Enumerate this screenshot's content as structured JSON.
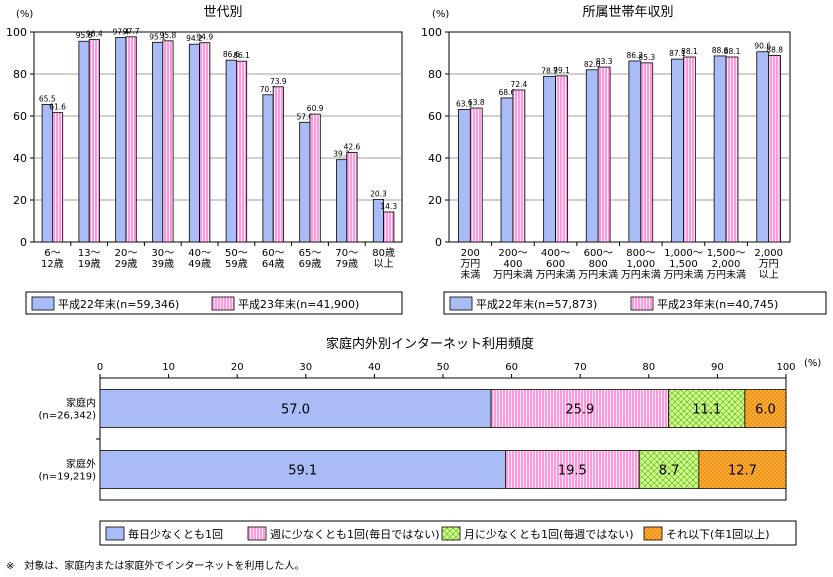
{
  "colors": {
    "blue": "#A9BCF5",
    "pink": "#FF99DD",
    "green": "#CCFF88",
    "orange": "#FFAA33",
    "frame": "#000000"
  },
  "chart_data": [
    {
      "type": "bar",
      "title": "世代別",
      "unit_label": "(%)",
      "ylim": [
        0,
        100
      ],
      "yticks": [
        "0",
        "20",
        "40",
        "60",
        "80",
        "100"
      ],
      "categories": [
        [
          "6～",
          "12歳"
        ],
        [
          "13～",
          "19歳"
        ],
        [
          "20～",
          "29歳"
        ],
        [
          "30～",
          "39歳"
        ],
        [
          "40～",
          "49歳"
        ],
        [
          "50～",
          "59歳"
        ],
        [
          "60～",
          "64歳"
        ],
        [
          "65～",
          "69歳"
        ],
        [
          "70～",
          "79歳"
        ],
        [
          "80歳",
          "以上"
        ]
      ],
      "series": [
        {
          "name": "平成22年末(n=59,346)",
          "values": [
            65.5,
            95.6,
            97.4,
            95.1,
            94.2,
            86.6,
            70.1,
            57.0,
            39.2,
            20.3
          ]
        },
        {
          "name": "平成23年末(n=41,900)",
          "values": [
            61.6,
            96.4,
            97.7,
            95.8,
            94.9,
            86.1,
            73.9,
            60.9,
            42.6,
            14.3
          ]
        }
      ]
    },
    {
      "type": "bar",
      "title": "所属世帯年収別",
      "unit_label": "(%)",
      "ylim": [
        0,
        100
      ],
      "yticks": [
        "0",
        "20",
        "40",
        "60",
        "80",
        "100"
      ],
      "categories": [
        [
          "200",
          "万円",
          "未満"
        ],
        [
          "200～",
          "400",
          "万円未満"
        ],
        [
          "400～",
          "600",
          "万円未満"
        ],
        [
          "600～",
          "800",
          "万円未満"
        ],
        [
          "800～",
          "1,000",
          "万円未満"
        ],
        [
          "1,000～",
          "1,500",
          "万円未満"
        ],
        [
          "1,500～",
          "2,000",
          "万円未満"
        ],
        [
          "2,000",
          "万円",
          "以上"
        ]
      ],
      "series": [
        {
          "name": "平成22年末(n=57,873)",
          "values": [
            63.1,
            68.6,
            78.9,
            82.0,
            86.2,
            87.1,
            88.6,
            90.6
          ]
        },
        {
          "name": "平成23年末(n=40,745)",
          "values": [
            63.8,
            72.4,
            79.1,
            83.3,
            85.3,
            88.1,
            88.1,
            88.8
          ]
        }
      ]
    },
    {
      "type": "bar",
      "orientation": "horizontal-stacked",
      "title": "家庭内外別インターネット利用頻度",
      "unit_label": "(%)",
      "xlim": [
        0,
        100
      ],
      "xticks": [
        "0",
        "10",
        "20",
        "30",
        "40",
        "50",
        "60",
        "70",
        "80",
        "90",
        "100"
      ],
      "categories": [
        [
          "家庭内",
          "(n=26,342)"
        ],
        [
          "家庭外",
          "(n=19,219)"
        ]
      ],
      "series": [
        {
          "name": "毎日少なくとも1回",
          "values": [
            57.0,
            59.1
          ]
        },
        {
          "name": "週に少なくとも1回(毎日ではない)",
          "values": [
            25.9,
            19.5
          ]
        },
        {
          "name": "月に少なくとも1回(毎週ではない)",
          "values": [
            11.1,
            8.7
          ]
        },
        {
          "name": "それ以下(年1回以上)",
          "values": [
            6.0,
            12.7
          ]
        }
      ]
    }
  ],
  "footnote": "※　対象は、家庭内または家庭外でインターネットを利用した人。"
}
